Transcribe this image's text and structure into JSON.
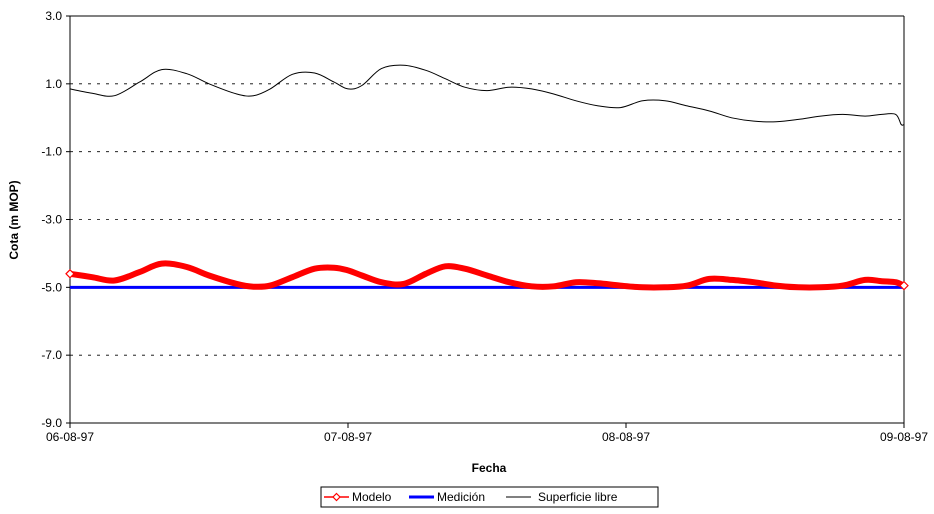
{
  "chart_data": {
    "type": "line",
    "title": "",
    "xlabel": "Fecha",
    "ylabel": "Cota (m MOP)",
    "ylim": [
      -9.0,
      3.0
    ],
    "yticks": [
      -9.0,
      -7.0,
      -5.0,
      -3.0,
      -1.0,
      1.0,
      3.0
    ],
    "ytick_labels": [
      "-9.0",
      "-7.0",
      "-5.0",
      "-3.0",
      "-1.0",
      "1.0",
      "3.0"
    ],
    "xlim": [
      0,
      3
    ],
    "xticks": [
      0,
      1,
      2,
      3
    ],
    "xtick_labels": [
      "06-08-97",
      "07-08-97",
      "08-08-97",
      "09-08-97"
    ],
    "grid": "horizontal dashed",
    "legend_position": "bottom",
    "series": [
      {
        "name": "Modelo",
        "color": "#ff0000",
        "marker": "diamond",
        "x": [
          0.0,
          0.08,
          0.16,
          0.25,
          0.33,
          0.42,
          0.5,
          0.6,
          0.66,
          0.72,
          0.8,
          0.88,
          0.95,
          1.0,
          1.05,
          1.12,
          1.2,
          1.28,
          1.35,
          1.42,
          1.5,
          1.58,
          1.66,
          1.74,
          1.82,
          1.9,
          1.98,
          2.06,
          2.14,
          2.22,
          2.3,
          2.38,
          2.46,
          2.54,
          2.62,
          2.7,
          2.78,
          2.86,
          2.92,
          2.97,
          3.0
        ],
        "y": [
          -4.6,
          -4.7,
          -4.8,
          -4.55,
          -4.3,
          -4.4,
          -4.65,
          -4.9,
          -4.98,
          -4.95,
          -4.7,
          -4.45,
          -4.42,
          -4.5,
          -4.65,
          -4.85,
          -4.9,
          -4.6,
          -4.38,
          -4.45,
          -4.65,
          -4.85,
          -4.97,
          -4.97,
          -4.85,
          -4.88,
          -4.95,
          -5.0,
          -5.0,
          -4.95,
          -4.75,
          -4.78,
          -4.85,
          -4.95,
          -5.0,
          -5.0,
          -4.95,
          -4.78,
          -4.82,
          -4.85,
          -4.95
        ]
      },
      {
        "name": "Medición",
        "color": "#0000ff",
        "x": [
          0,
          3
        ],
        "y": [
          -5.0,
          -5.0
        ]
      },
      {
        "name": "Superficie libre",
        "color": "#000000",
        "x": [
          0.0,
          0.08,
          0.16,
          0.25,
          0.33,
          0.42,
          0.5,
          0.6,
          0.66,
          0.72,
          0.8,
          0.88,
          0.95,
          1.0,
          1.05,
          1.12,
          1.2,
          1.28,
          1.35,
          1.42,
          1.5,
          1.58,
          1.66,
          1.74,
          1.82,
          1.9,
          1.98,
          2.06,
          2.14,
          2.22,
          2.3,
          2.38,
          2.46,
          2.54,
          2.62,
          2.7,
          2.78,
          2.86,
          2.92,
          2.97,
          2.99,
          3.0
        ],
        "y": [
          0.85,
          0.72,
          0.65,
          1.05,
          1.42,
          1.3,
          1.0,
          0.7,
          0.65,
          0.85,
          1.28,
          1.32,
          1.05,
          0.85,
          0.95,
          1.45,
          1.55,
          1.4,
          1.15,
          0.9,
          0.8,
          0.9,
          0.85,
          0.7,
          0.5,
          0.35,
          0.3,
          0.5,
          0.5,
          0.35,
          0.2,
          0.0,
          -0.1,
          -0.12,
          -0.05,
          0.05,
          0.1,
          0.05,
          0.1,
          0.1,
          -0.2,
          -0.2
        ]
      }
    ]
  }
}
